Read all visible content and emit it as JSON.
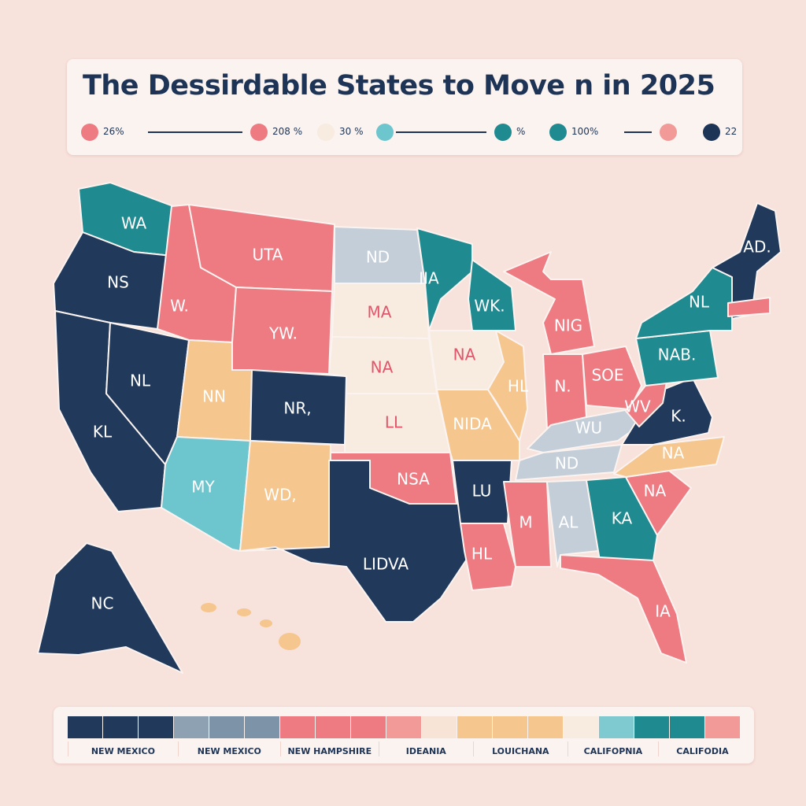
{
  "title": "The Dessirdable States to Move  n in 2025",
  "legend_top": [
    {
      "color": "#ee7a82",
      "label": "26%",
      "line_after": true
    },
    {
      "color": "#ee7a82",
      "label": "208 %",
      "line_after": false
    },
    {
      "color": "#f8ebe0",
      "label": "30  %",
      "line_after": false
    },
    {
      "color": "#6dc5cd",
      "label": "",
      "line_after": true
    },
    {
      "color": "#1f8a8f",
      "label": "%",
      "line_after": false
    },
    {
      "color": "#1f8a8f",
      "label": "100%",
      "line_after": true
    },
    {
      "color": "#f29a98",
      "label": "",
      "line_after": false
    },
    {
      "color": "#1d3456",
      "label": "22",
      "line_after": false
    }
  ],
  "colors": {
    "navy": "#213a5c",
    "teal": "#1f8a8f",
    "pink": "#ee7a82",
    "cream": "#f8ebe0",
    "tan": "#f5c68e",
    "gray": "#c3ced9",
    "lteal": "#6dc5cd",
    "bg": "#f8e2dc"
  },
  "states": [
    {
      "id": "wa",
      "label": "WA",
      "color": "teal"
    },
    {
      "id": "or",
      "label": "NS",
      "color": "navy"
    },
    {
      "id": "ca",
      "label": "KL",
      "color": "navy"
    },
    {
      "id": "nv",
      "label": "NL",
      "color": "navy"
    },
    {
      "id": "id",
      "label": "W.",
      "color": "pink"
    },
    {
      "id": "mt",
      "label": "UTA",
      "color": "pink"
    },
    {
      "id": "wy",
      "label": "YW.",
      "color": "pink"
    },
    {
      "id": "ut",
      "label": "NN",
      "color": "tan"
    },
    {
      "id": "co",
      "label": "NR,",
      "color": "navy"
    },
    {
      "id": "az",
      "label": "MY",
      "color": "lteal"
    },
    {
      "id": "nm",
      "label": "WD,",
      "color": "tan"
    },
    {
      "id": "nd",
      "label": "ND",
      "color": "gray"
    },
    {
      "id": "sd",
      "label": "MA",
      "color": "cream"
    },
    {
      "id": "ne",
      "label": "NA",
      "color": "cream"
    },
    {
      "id": "ks",
      "label": "LL",
      "color": "cream"
    },
    {
      "id": "ok",
      "label": "NSA",
      "color": "pink"
    },
    {
      "id": "tx",
      "label": "LIDVA",
      "color": "navy"
    },
    {
      "id": "mn",
      "label": "IIA",
      "color": "teal"
    },
    {
      "id": "ia",
      "label": "NA",
      "color": "cream"
    },
    {
      "id": "mo",
      "label": "NIDA",
      "color": "tan"
    },
    {
      "id": "wi",
      "label": "WK.",
      "color": "teal"
    },
    {
      "id": "il",
      "label": "HL",
      "color": "tan"
    },
    {
      "id": "mi",
      "label": "NIG",
      "color": "pink"
    },
    {
      "id": "in",
      "label": "N.",
      "color": "pink"
    },
    {
      "id": "oh",
      "label": "SOE",
      "color": "pink"
    },
    {
      "id": "ky",
      "label": "WU",
      "color": "gray"
    },
    {
      "id": "tn",
      "label": "ND",
      "color": "gray"
    },
    {
      "id": "ar",
      "label": "LU",
      "color": "navy"
    },
    {
      "id": "la",
      "label": "HL",
      "color": "pink"
    },
    {
      "id": "ms",
      "label": "M",
      "color": "pink"
    },
    {
      "id": "al",
      "label": "AL",
      "color": "gray"
    },
    {
      "id": "ga",
      "label": "KA",
      "color": "teal"
    },
    {
      "id": "fl",
      "label": "IA",
      "color": "pink"
    },
    {
      "id": "sc",
      "label": "NA",
      "color": "pink"
    },
    {
      "id": "nc",
      "label": "NA",
      "color": "tan"
    },
    {
      "id": "va",
      "label": "K.",
      "color": "navy"
    },
    {
      "id": "wv",
      "label": "WV",
      "color": "pink"
    },
    {
      "id": "pa",
      "label": "NAB.",
      "color": "teal"
    },
    {
      "id": "ny",
      "label": "NL",
      "color": "teal"
    },
    {
      "id": "ne_us",
      "label": "AD.",
      "color": "navy"
    },
    {
      "id": "ma",
      "label": "",
      "color": "pink"
    },
    {
      "id": "ak",
      "label": "NC",
      "color": "navy"
    }
  ],
  "swatches": [
    "#213a5c",
    "#213a5c",
    "#213a5c",
    "#8ea1b3",
    "#7d93a8",
    "#7d93a8",
    "#ee7a82",
    "#ee7a82",
    "#ee7a82",
    "#f29a98",
    "#f8e4d6",
    "#f5c68e",
    "#f5c68e",
    "#f5c68e",
    "#f8ebe0",
    "#7fcad0",
    "#1f8a8f",
    "#1f8a8f",
    "#f29a98"
  ],
  "bottom_labels": [
    "NEW MEXICO",
    "NEW MEXICO",
    "NEW HAMPSHIRE",
    "IDEANIA",
    "LOUICHANA",
    "CALIFOPNIA",
    "CALIFODIA"
  ]
}
